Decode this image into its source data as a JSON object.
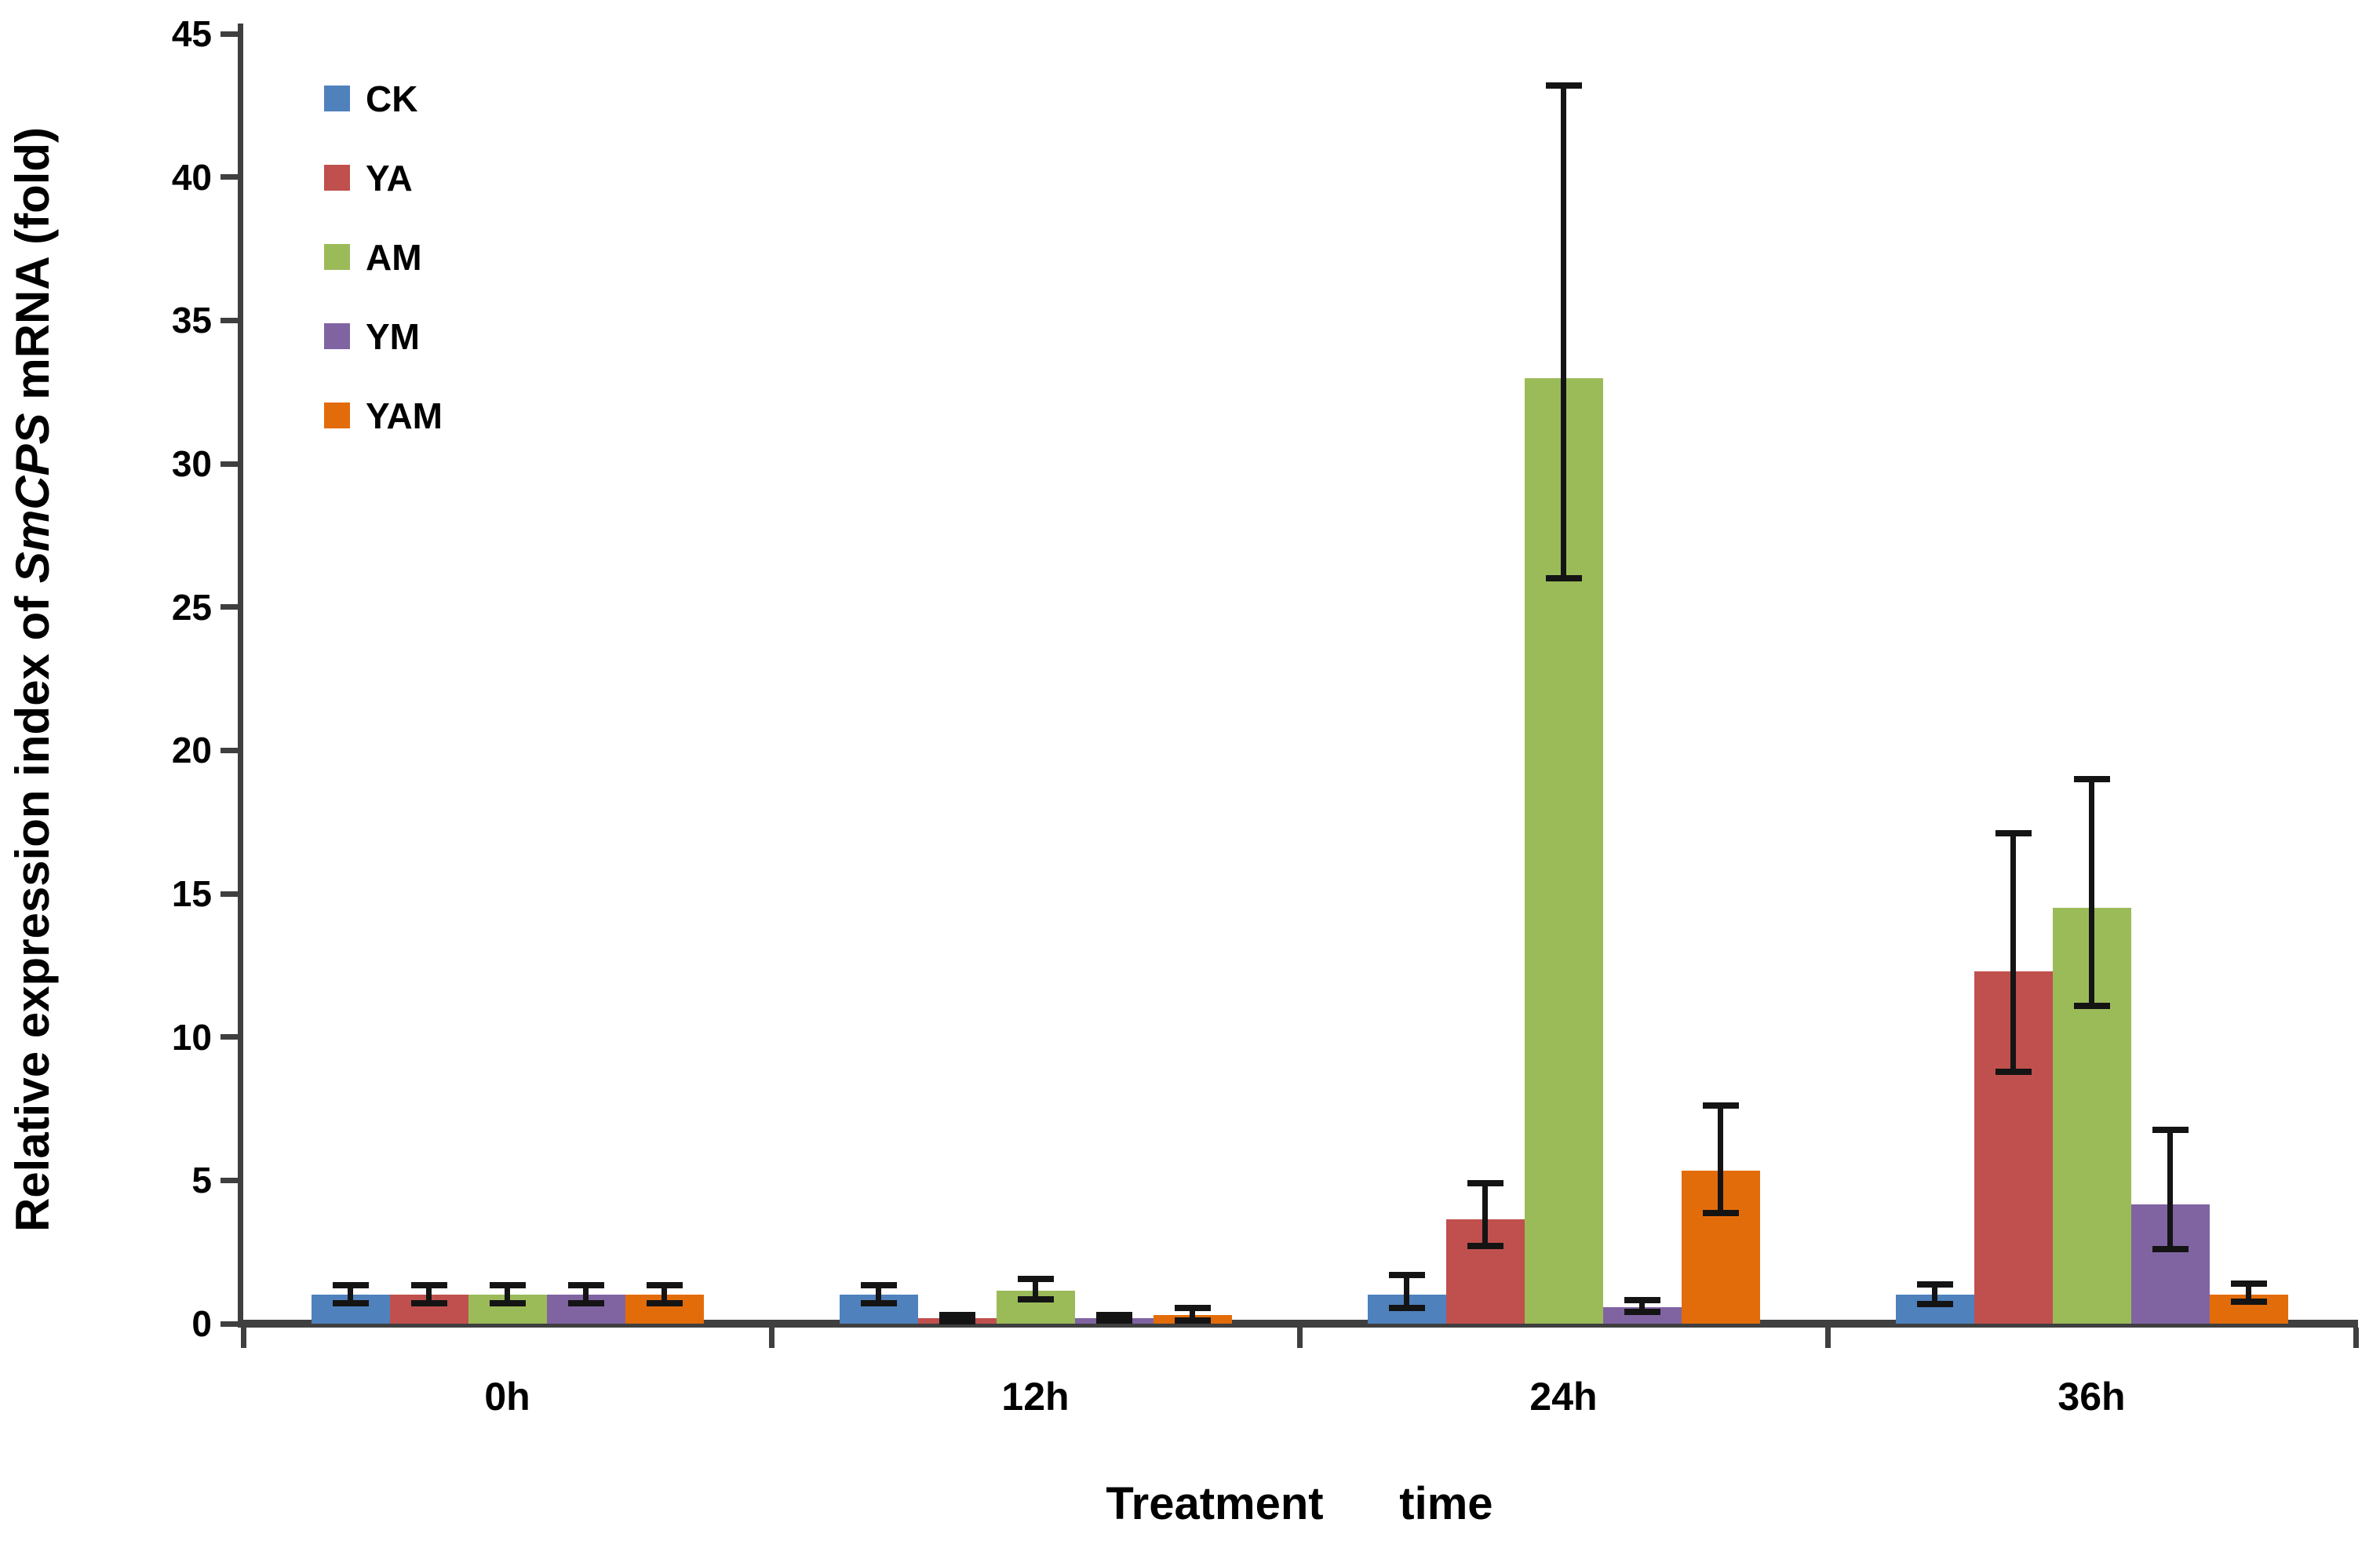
{
  "figure": {
    "y_axis_title_prefix": "Relative expression index of ",
    "y_axis_title_italic": "SmCPS",
    "y_axis_title_suffix": " mRNA (fold)",
    "x_axis_title": "Treatment      time"
  },
  "legend": {
    "position": "upper-left-inside",
    "items": [
      {
        "label": "CK",
        "color": "#4F81BD"
      },
      {
        "label": "YA",
        "color": "#C0504D"
      },
      {
        "label": "AM",
        "color": "#9BBB59"
      },
      {
        "label": "YM",
        "color": "#8064A2"
      },
      {
        "label": "YAM",
        "color": "#E36C0A"
      }
    ]
  },
  "chart_data": {
    "type": "bar",
    "title": "",
    "xlabel": "Treatment time",
    "ylabel": "Relative expression index of SmCPS mRNA (fold)",
    "categories": [
      "0h",
      "12h",
      "24h",
      "36h"
    ],
    "ylim": [
      0,
      45
    ],
    "y_tick_step": 5,
    "y_ticks": [
      0,
      5,
      10,
      15,
      20,
      25,
      30,
      35,
      40,
      45
    ],
    "grid": false,
    "error_bars": "absolute low/high cap values per point",
    "series": [
      {
        "name": "CK",
        "color": "#4F81BD",
        "values": [
          1.0,
          1.0,
          1.0,
          1.0
        ],
        "err_low": [
          0.7,
          0.7,
          0.55,
          0.68
        ],
        "err_high": [
          1.35,
          1.35,
          1.7,
          1.37
        ]
      },
      {
        "name": "YA",
        "color": "#C0504D",
        "values": [
          1.0,
          0.18,
          3.65,
          12.3
        ],
        "err_low": [
          0.7,
          0.08,
          2.7,
          8.8
        ],
        "err_high": [
          1.35,
          0.3,
          4.9,
          17.1
        ]
      },
      {
        "name": "AM",
        "color": "#9BBB59",
        "values": [
          1.0,
          1.15,
          33.0,
          14.5
        ],
        "err_low": [
          0.7,
          0.85,
          26.0,
          11.1
        ],
        "err_high": [
          1.35,
          1.55,
          43.2,
          19.0
        ]
      },
      {
        "name": "YM",
        "color": "#8064A2",
        "values": [
          1.0,
          0.19,
          0.58,
          4.15
        ],
        "err_low": [
          0.7,
          0.1,
          0.4,
          2.6
        ],
        "err_high": [
          1.35,
          0.3,
          0.82,
          6.75
        ]
      },
      {
        "name": "YAM",
        "color": "#E36C0A",
        "values": [
          1.0,
          0.3,
          5.35,
          1.0
        ],
        "err_low": [
          0.7,
          0.12,
          3.85,
          0.77
        ],
        "err_high": [
          1.35,
          0.55,
          7.6,
          1.4
        ]
      }
    ]
  }
}
